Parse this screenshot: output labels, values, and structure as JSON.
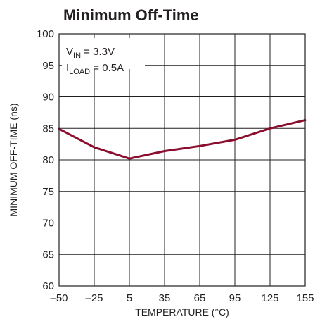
{
  "chart_data": {
    "type": "line",
    "title": "Minimum Off-Time",
    "xlabel": "TEMPERATURE (°C)",
    "ylabel": "MINIMUM OFF-TIME (ns)",
    "x_ticks": [
      "–50",
      "–25",
      "5",
      "35",
      "65",
      "95",
      "125",
      "155"
    ],
    "x_tick_values": [
      -50,
      -25,
      5,
      35,
      65,
      95,
      125,
      155
    ],
    "y_ticks": [
      "60",
      "65",
      "70",
      "75",
      "80",
      "85",
      "90",
      "95",
      "100"
    ],
    "y_tick_values": [
      60,
      65,
      70,
      75,
      80,
      85,
      90,
      95,
      100
    ],
    "xlim": [
      -50,
      155
    ],
    "ylim": [
      60,
      100
    ],
    "grid": true,
    "series": [
      {
        "x": [
          -50,
          -25,
          5,
          35,
          65,
          95,
          125,
          155
        ],
        "y": [
          84.9,
          82.0,
          80.2,
          81.4,
          82.2,
          83.2,
          85.0,
          86.3
        ]
      }
    ],
    "annotations": [
      {
        "main": "V",
        "sub": "IN",
        "rest": " = 3.3V"
      },
      {
        "main": "I",
        "sub": "LOAD",
        "rest": " = 0.5A"
      }
    ]
  },
  "colors": {
    "series": "#8b0d2e",
    "axes": "#231f20"
  }
}
